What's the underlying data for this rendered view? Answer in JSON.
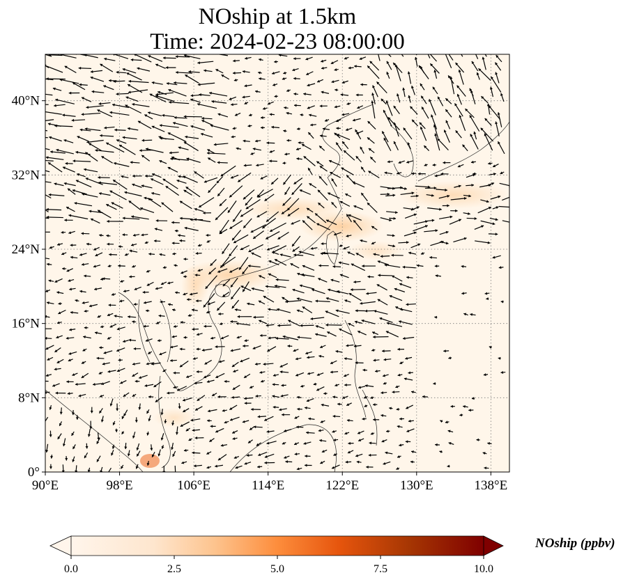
{
  "title_line1": "NOship at 1.5km",
  "title_line2": "Time: 2024-02-23 08:00:00",
  "map": {
    "lon_range": [
      90,
      140
    ],
    "lat_range": [
      0,
      45
    ],
    "lon_ticks": [
      "90°E",
      "98°E",
      "106°E",
      "114°E",
      "122°E",
      "130°E",
      "138°E"
    ],
    "lat_ticks": [
      "0°",
      "8°N",
      "16°N",
      "24°N",
      "32°N",
      "40°N"
    ],
    "background_color": "#fff6ea",
    "plume_color": "#fdd5a8",
    "gridline_style": "dotted"
  },
  "colorbar": {
    "label": "NOship (ppbv)",
    "ticks": [
      "0.0",
      "2.5",
      "5.0",
      "7.5",
      "10.0"
    ],
    "min": 0,
    "max": 10,
    "colormap": [
      "#fff5eb",
      "#fdd3a9",
      "#fc8d3c",
      "#e3511f",
      "#b31f0a",
      "#7f0000"
    ]
  }
}
